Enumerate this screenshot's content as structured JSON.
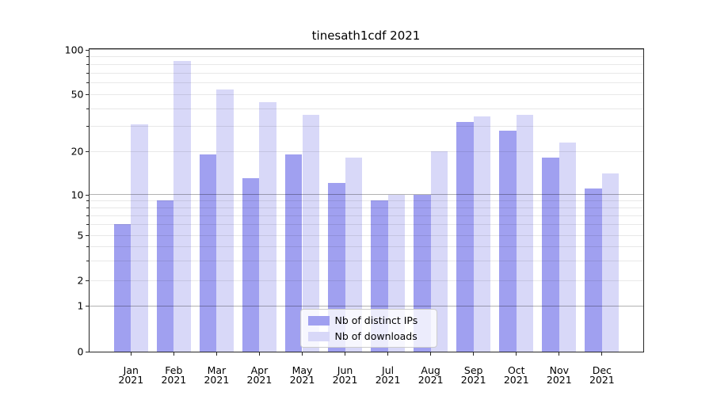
{
  "chart_data": {
    "type": "bar",
    "title": "tinesath1cdf 2021",
    "year": "2021",
    "categories": [
      "Jan",
      "Feb",
      "Mar",
      "Apr",
      "May",
      "Jun",
      "Jul",
      "Aug",
      "Sep",
      "Oct",
      "Nov",
      "Dec"
    ],
    "series": [
      {
        "name": "Nb of distinct IPs",
        "color": "#a0a0f0",
        "values": [
          6,
          9,
          19,
          13,
          19,
          12,
          9,
          10,
          32,
          28,
          18,
          11
        ]
      },
      {
        "name": "Nb of downloads",
        "color": "#d8d8f8",
        "values": [
          31,
          84,
          54,
          44,
          36,
          18,
          10,
          20,
          35,
          36,
          23,
          14
        ]
      }
    ],
    "xlabel": "",
    "ylabel": "",
    "ylim": [
      0,
      100
    ],
    "y_scale": "asinh",
    "y_ticks": [
      0,
      1,
      2,
      5,
      10,
      20,
      50,
      100
    ],
    "y_major_gridlines": [
      1,
      10,
      100
    ],
    "y_minor_gridlines": [
      2,
      3,
      4,
      5,
      6,
      7,
      8,
      9,
      20,
      30,
      40,
      50,
      60,
      70,
      80,
      90
    ],
    "grid": true,
    "legend_position": "lower center"
  }
}
